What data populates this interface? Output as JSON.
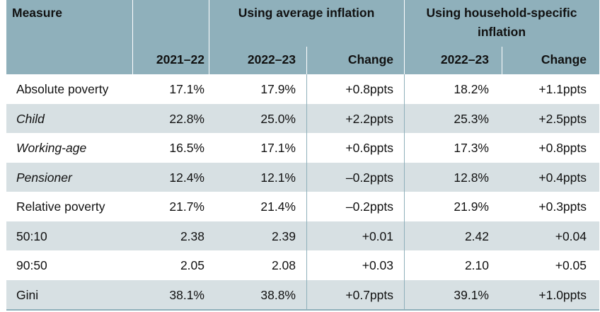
{
  "header": {
    "measure": "Measure",
    "group_avg": "Using average inflation",
    "group_hh_line1": "Using household-specific",
    "group_hh_line2": "inflation",
    "col_2021": "2021–22",
    "col_avg_2022": "2022–23",
    "col_avg_change": "Change",
    "col_hh_2022": "2022–23",
    "col_hh_change": "Change"
  },
  "rows": [
    {
      "label": "Absolute poverty",
      "italic": false,
      "v2021": "17.1%",
      "avg2022": "17.9%",
      "avgchg": "+0.8ppts",
      "hh2022": "18.2%",
      "hhchg": "+1.1ppts"
    },
    {
      "label": "Child",
      "italic": true,
      "v2021": "22.8%",
      "avg2022": "25.0%",
      "avgchg": "+2.2ppts",
      "hh2022": "25.3%",
      "hhchg": "+2.5ppts"
    },
    {
      "label": "Working-age",
      "italic": true,
      "v2021": "16.5%",
      "avg2022": "17.1%",
      "avgchg": "+0.6ppts",
      "hh2022": "17.3%",
      "hhchg": "+0.8ppts"
    },
    {
      "label": "Pensioner",
      "italic": true,
      "v2021": "12.4%",
      "avg2022": "12.1%",
      "avgchg": "–0.2ppts",
      "hh2022": "12.8%",
      "hhchg": "+0.4ppts"
    },
    {
      "label": "Relative poverty",
      "italic": false,
      "v2021": "21.7%",
      "avg2022": "21.4%",
      "avgchg": "–0.2ppts",
      "hh2022": "21.9%",
      "hhchg": "+0.3ppts"
    },
    {
      "label": "50:10",
      "italic": false,
      "v2021": "2.38",
      "avg2022": "2.39",
      "avgchg": "+0.01",
      "hh2022": "2.42",
      "hhchg": "+0.04"
    },
    {
      "label": "90:50",
      "italic": false,
      "v2021": "2.05",
      "avg2022": "2.08",
      "avgchg": "+0.03",
      "hh2022": "2.10",
      "hhchg": "+0.05"
    },
    {
      "label": "Gini",
      "italic": false,
      "v2021": "38.1%",
      "avg2022": "38.8%",
      "avgchg": "+0.7ppts",
      "hh2022": "39.1%",
      "hhchg": "+1.0ppts"
    }
  ],
  "colors": {
    "header_bg": "#8fb0bb",
    "alt_row_bg": "#d7e0e3",
    "row_bg": "#ffffff"
  }
}
